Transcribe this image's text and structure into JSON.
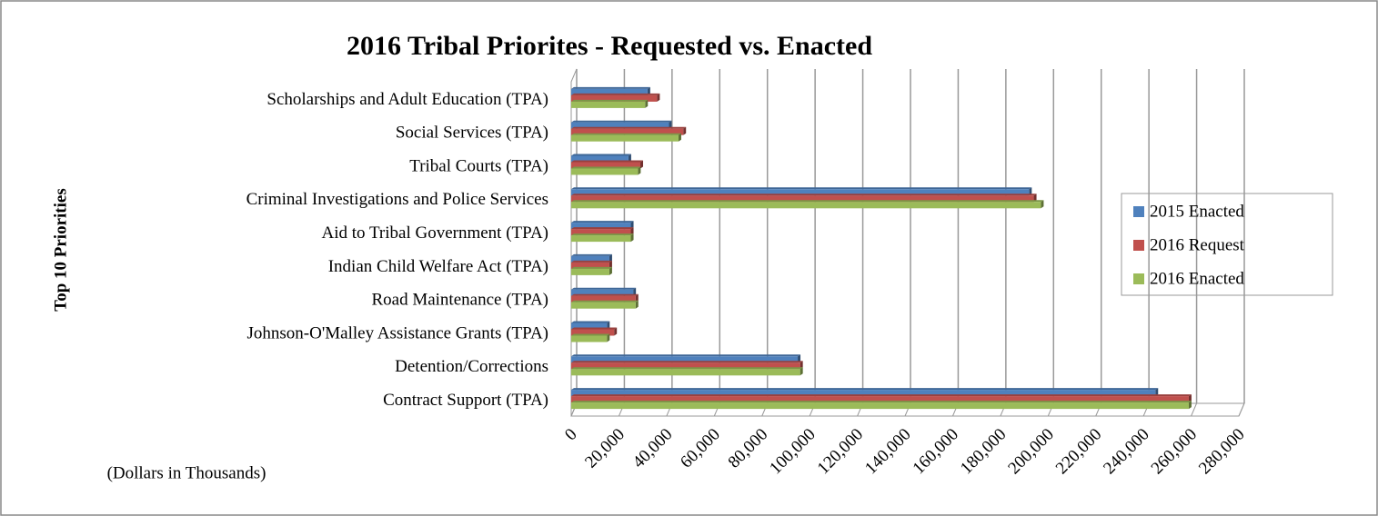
{
  "chart_data": {
    "type": "bar",
    "orientation": "horizontal",
    "title": "2016 Tribal Priorites - Requested vs. Enacted",
    "y_label": "Top 10 Priorities",
    "x_label": "(Dollars in Thousands)",
    "categories": [
      "Scholarships and Adult Education (TPA)",
      "Social Services (TPA)",
      "Tribal Courts (TPA)",
      "Criminal Investigations and Police Services",
      "Aid to Tribal Government (TPA)",
      "Indian Child Welfare Act (TPA)",
      "Road Maintenance (TPA)",
      "Johnson-O'Malley Assistance Grants (TPA)",
      "Detention/Corrections",
      "Contract Support (TPA)"
    ],
    "series": [
      {
        "name": "2015 Enacted",
        "color": "#4f81bd",
        "values": [
          32000,
          41000,
          24000,
          192000,
          25000,
          16000,
          26000,
          15000,
          95000,
          245000
        ]
      },
      {
        "name": "2016 Request",
        "color": "#c0504d",
        "values": [
          36000,
          47000,
          29000,
          194000,
          25000,
          16000,
          27000,
          18000,
          96000,
          259000
        ]
      },
      {
        "name": "2016 Enacted",
        "color": "#9bbb59",
        "values": [
          31000,
          45000,
          28000,
          197000,
          25000,
          16000,
          27000,
          15000,
          96000,
          259000
        ]
      }
    ],
    "xlim": [
      0,
      280000
    ],
    "xticks": [
      0,
      {
        "value": 20000,
        "label": "20,000"
      },
      {
        "value": 40000,
        "label": "40,000"
      },
      {
        "value": 60000,
        "label": "60,000"
      },
      {
        "value": 80000,
        "label": "80,000"
      },
      {
        "value": 100000,
        "label": "100,000"
      },
      {
        "value": 120000,
        "label": "120,000"
      },
      {
        "value": 140000,
        "label": "140,000"
      },
      {
        "value": 160000,
        "label": "160,000"
      },
      {
        "value": 180000,
        "label": "180,000"
      },
      {
        "value": 200000,
        "label": "200,000"
      },
      {
        "value": 220000,
        "label": "220,000"
      },
      {
        "value": 240000,
        "label": "240,000"
      },
      {
        "value": 260000,
        "label": "260,000"
      },
      {
        "value": 280000,
        "label": "280,000"
      }
    ],
    "grid": true,
    "legend": "right"
  }
}
